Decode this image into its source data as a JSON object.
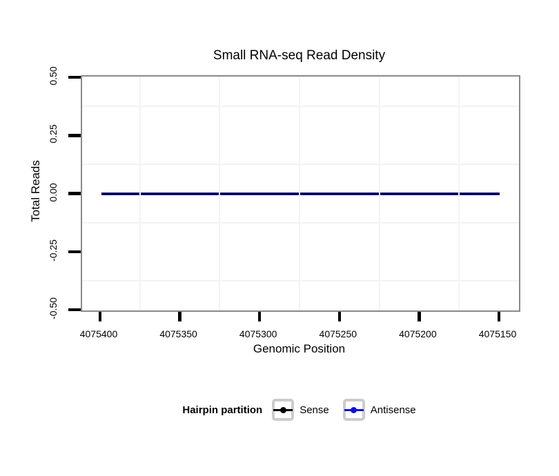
{
  "title": "Small RNA-seq Read Density",
  "axes": {
    "x": {
      "label": "Genomic Position",
      "ticks": [
        "4075400",
        "4075350",
        "4075300",
        "4075250",
        "4075200",
        "4075150"
      ]
    },
    "y": {
      "label": "Total Reads",
      "ticks": [
        "0.50",
        "0.25",
        "0.00",
        "-0.25",
        "-0.50"
      ]
    }
  },
  "legend": {
    "title": "Hairpin partition",
    "items": [
      {
        "label": "Sense",
        "color": "#000000",
        "swatch": "line-with-point"
      },
      {
        "label": "Antisense",
        "color": "#0f0fe0",
        "swatch": "line-with-point"
      }
    ]
  },
  "colors": {
    "panel_border": "#898989",
    "grid_minor": "#f3f3f3",
    "tick": "#000000",
    "sense": "#000000",
    "antisense": "#0f0fe0"
  },
  "chart_data": {
    "type": "line",
    "x": [
      4075400,
      4075350,
      4075300,
      4075250,
      4075200,
      4075150
    ],
    "x_axis_reversed": true,
    "series": [
      {
        "name": "Sense",
        "color": "#000000",
        "values": [
          0,
          0,
          0,
          0,
          0,
          0
        ]
      },
      {
        "name": "Antisense",
        "color": "#0f0fe0",
        "values": [
          0,
          0,
          0,
          0,
          0,
          0
        ]
      }
    ],
    "title": "Small RNA-seq Read Density",
    "xlabel": "Genomic Position",
    "ylabel": "Total Reads",
    "ylim": [
      -0.5,
      0.5
    ],
    "xlim_span": [
      4075400,
      4075150
    ],
    "grid": "minor-only",
    "legend_title": "Hairpin partition",
    "legend_position": "bottom"
  }
}
